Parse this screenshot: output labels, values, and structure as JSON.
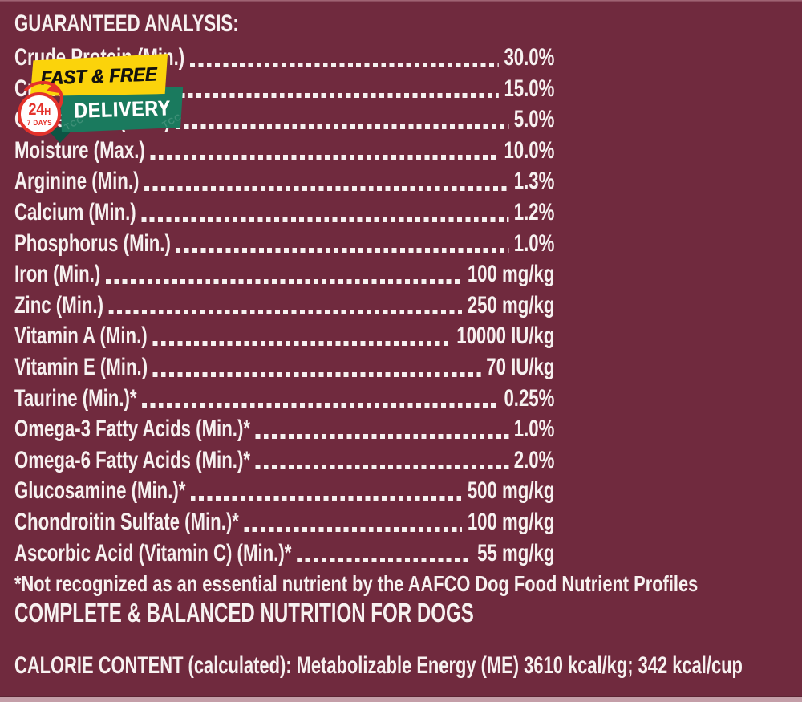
{
  "page": {
    "background": "#702A3E",
    "text_color": "#F7F1F0",
    "bottom_edge_color": "#C49EA8"
  },
  "badge": {
    "banner_top": "FAST & FREE",
    "banner_bottom": "DELIVERY",
    "circle_hours": "24",
    "circle_hours_unit": "H",
    "circle_days": "7 DAYS",
    "watermark": "TCC",
    "colors": {
      "yellow": "#FBD30B",
      "green": "#1A7A5E",
      "green_dark": "#0C5544",
      "red": "#E4322B",
      "banner_text_black": "#14120F"
    }
  },
  "analysis": {
    "title": "GUARANTEED ANALYSIS:",
    "rows": [
      {
        "label": "Crude Protein (Min.)",
        "value": "30.0%"
      },
      {
        "label": "Crude Fat (Min.)",
        "value": "15.0%"
      },
      {
        "label": "Crude Fiber (Max.)",
        "value": "5.0%"
      },
      {
        "label": "Moisture (Max.)",
        "value": "10.0%"
      },
      {
        "label": "Arginine (Min.)",
        "value": "1.3%"
      },
      {
        "label": "Calcium (Min.)",
        "value": "1.2%"
      },
      {
        "label": "Phosphorus (Min.)",
        "value": "1.0%"
      },
      {
        "label": "Iron (Min.)",
        "value": "100 mg/kg"
      },
      {
        "label": "Zinc (Min.)",
        "value": "250 mg/kg"
      },
      {
        "label": "Vitamin A (Min.)",
        "value": "10000 IU/kg"
      },
      {
        "label": "Vitamin E (Min.)",
        "value": "70 IU/kg"
      },
      {
        "label": "Taurine (Min.)*",
        "value": "0.25%"
      },
      {
        "label": "Omega-3 Fatty Acids (Min.)*",
        "value": "1.0%"
      },
      {
        "label": "Omega-6 Fatty Acids (Min.)*",
        "value": "2.0%"
      },
      {
        "label": "Glucosamine (Min.)*",
        "value": "500 mg/kg"
      },
      {
        "label": "Chondroitin Sulfate (Min.)*",
        "value": "100 mg/kg"
      },
      {
        "label": "Ascorbic Acid (Vitamin C) (Min.)*",
        "value": "55 mg/kg"
      }
    ],
    "footnote": "*Not recognized as an essential nutrient by the AAFCO Dog Food Nutrient Profiles",
    "complete_line": "COMPLETE & BALANCED NUTRITION FOR DOGS",
    "calorie_line": "CALORIE CONTENT (calculated): Metabolizable Energy (ME) 3610 kcal/kg; 342 kcal/cup"
  }
}
